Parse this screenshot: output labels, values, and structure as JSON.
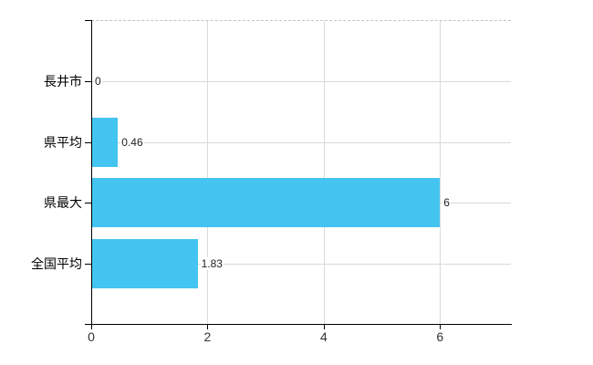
{
  "chart_data": {
    "type": "bar",
    "orientation": "horizontal",
    "title": "",
    "xlabel": "",
    "ylabel": "",
    "categories": [
      "長井市",
      "県平均",
      "県最大",
      "全国平均"
    ],
    "values": [
      0,
      0.46,
      6,
      1.83
    ],
    "value_labels": [
      "0",
      "0.46",
      "6",
      "1.83"
    ],
    "x_ticks": [
      0,
      2,
      4,
      6
    ],
    "x_tick_labels": [
      "0",
      "2",
      "4",
      "6"
    ],
    "xlim": [
      0,
      7.22
    ],
    "grid": true,
    "legend": "none",
    "bar_color": "#44c4f0",
    "gridline_color": "#d3dcd3",
    "axis_color": "#000000"
  }
}
